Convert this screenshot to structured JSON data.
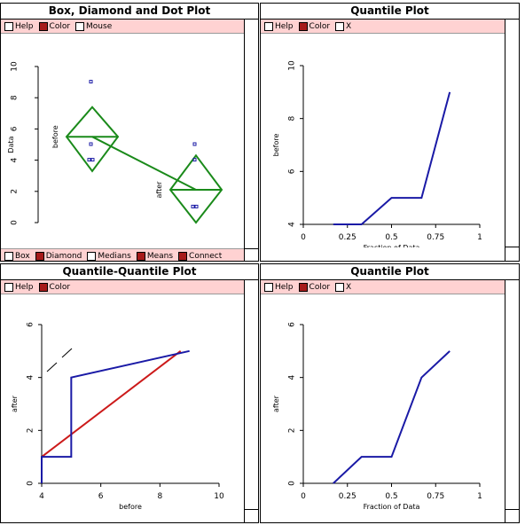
{
  "windows": {
    "box": {
      "title": "Box, Diamond and Dot Plot",
      "top_options": [
        {
          "label": "Help",
          "checked": false
        },
        {
          "label": "Color",
          "checked": true
        },
        {
          "label": "Mouse",
          "checked": false
        }
      ],
      "bottom_options": [
        {
          "label": "Box",
          "checked": false
        },
        {
          "label": "Diamond",
          "checked": true
        },
        {
          "label": "Medians",
          "checked": false
        },
        {
          "label": "Means",
          "checked": true
        },
        {
          "label": "Connect",
          "checked": true
        }
      ]
    },
    "q1": {
      "title": "Quantile Plot",
      "top_options": [
        {
          "label": "Help",
          "checked": false
        },
        {
          "label": "Color",
          "checked": true
        },
        {
          "label": "X",
          "checked": false
        }
      ]
    },
    "qq": {
      "title": "Quantile-Quantile Plot",
      "top_options": [
        {
          "label": "Help",
          "checked": false
        },
        {
          "label": "Color",
          "checked": true
        }
      ]
    },
    "q2": {
      "title": "Quantile Plot",
      "top_options": [
        {
          "label": "Help",
          "checked": false
        },
        {
          "label": "Color",
          "checked": true
        },
        {
          "label": "X",
          "checked": false
        }
      ]
    }
  },
  "colors": {
    "menu_bg": "#ffd2d2",
    "checked": "#a61a1a",
    "line_blue": "#1a1aa6",
    "diamond_green": "#1a8a1a",
    "ref_red": "#cc1a1a"
  },
  "chart_data": [
    {
      "type": "scatter",
      "title": "Box, Diamond and Dot Plot",
      "ylabel": "Data",
      "ylim": [
        0,
        10
      ],
      "yticks": [
        0,
        2,
        4,
        6,
        8,
        10
      ],
      "groups": [
        {
          "name": "before",
          "points": [
            9,
            5,
            4,
            4
          ],
          "mean": 5.5,
          "diamond_low": 3.3,
          "diamond_high": 7.4
        },
        {
          "name": "after",
          "points": [
            5,
            4,
            1,
            1
          ],
          "mean": 2.1,
          "diamond_low": 0,
          "diamond_high": 4.3
        }
      ]
    },
    {
      "type": "line",
      "title": "Quantile Plot",
      "xlabel": "Fraction of Data",
      "ylabel": "before",
      "xlim": [
        0,
        1
      ],
      "ylim": [
        4,
        10
      ],
      "xticks": [
        "0",
        "0.25",
        "0.5",
        "0.75",
        "1"
      ],
      "yticks": [
        4,
        6,
        8,
        10
      ],
      "series": [
        {
          "x": [
            0.17,
            0.33,
            0.5,
            0.67,
            0.83
          ],
          "y": [
            4,
            4,
            5,
            5,
            9
          ]
        }
      ]
    },
    {
      "type": "line",
      "title": "Quantile-Quantile Plot",
      "xlabel": "before",
      "ylabel": "after",
      "xlim": [
        4,
        10
      ],
      "ylim": [
        0,
        6
      ],
      "xticks": [
        4,
        6,
        8,
        10
      ],
      "yticks": [
        0,
        2,
        4,
        6
      ],
      "series": [
        {
          "x": [
            4,
            4,
            5,
            5,
            9
          ],
          "y": [
            0,
            1,
            1,
            4,
            5
          ]
        },
        {
          "x": [
            4,
            8.7
          ],
          "y": [
            1,
            5
          ]
        }
      ]
    },
    {
      "type": "line",
      "title": "Quantile Plot",
      "xlabel": "Fraction of Data",
      "ylabel": "after",
      "xlim": [
        0,
        1
      ],
      "ylim": [
        0,
        6
      ],
      "xticks": [
        "0",
        "0.25",
        "0.5",
        "0.75",
        "1"
      ],
      "yticks": [
        0,
        2,
        4,
        6
      ],
      "series": [
        {
          "x": [
            0.17,
            0.33,
            0.5,
            0.67,
            0.83
          ],
          "y": [
            0,
            1,
            1,
            4,
            5
          ]
        }
      ]
    }
  ]
}
